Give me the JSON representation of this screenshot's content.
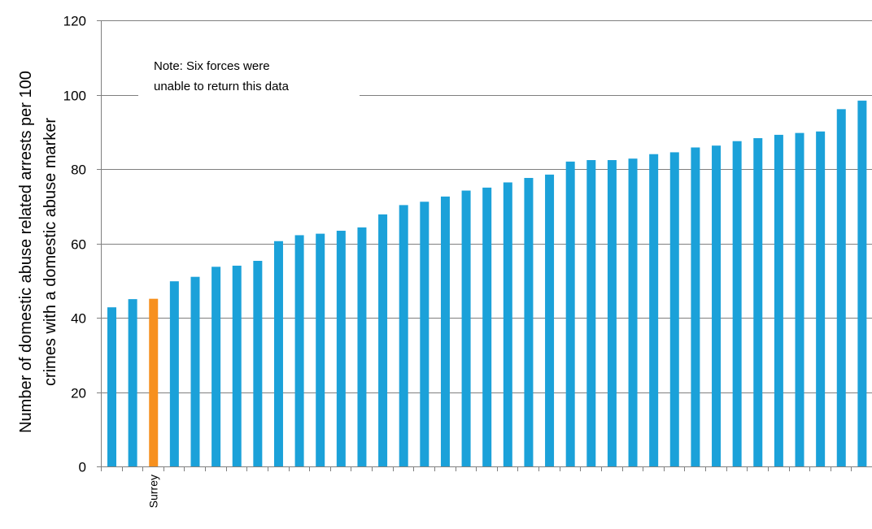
{
  "colors": {
    "bar": "#1ba1d9",
    "highlight": "#f7901e",
    "gridline": "#7f7f7f",
    "axis": "#7f7f7f",
    "text": "#000000",
    "background": "#ffffff"
  },
  "chart_data": {
    "type": "bar",
    "title": "",
    "xlabel": "",
    "ylabel_lines": [
      "Number of domestic abuse related arrests per 100",
      "crimes with a domestic abuse marker"
    ],
    "ylim": [
      0,
      120
    ],
    "yticks": [
      0,
      20,
      40,
      60,
      80,
      100,
      120
    ],
    "grid": true,
    "highlight_index": 2,
    "categories": [
      "",
      "",
      "Surrey",
      "",
      "",
      "",
      "",
      "",
      "",
      "",
      "",
      "",
      "",
      "",
      "",
      "",
      "",
      "",
      "",
      "",
      "",
      "",
      "",
      "",
      "",
      "",
      "",
      "",
      "",
      "",
      "",
      "",
      "",
      "",
      "",
      "",
      ""
    ],
    "values": [
      42.8,
      45.0,
      45.1,
      49.8,
      51.0,
      53.7,
      54.0,
      55.3,
      60.6,
      62.2,
      62.6,
      63.4,
      64.3,
      67.8,
      70.3,
      71.2,
      72.6,
      74.2,
      75.0,
      76.4,
      77.6,
      78.5,
      82.0,
      82.4,
      82.4,
      82.8,
      84.0,
      84.5,
      85.8,
      86.3,
      87.5,
      88.3,
      89.2,
      89.7,
      90.1,
      96.1,
      98.4
    ],
    "annotation_lines": [
      "Note: Six forces were",
      "unable to return this data"
    ]
  }
}
